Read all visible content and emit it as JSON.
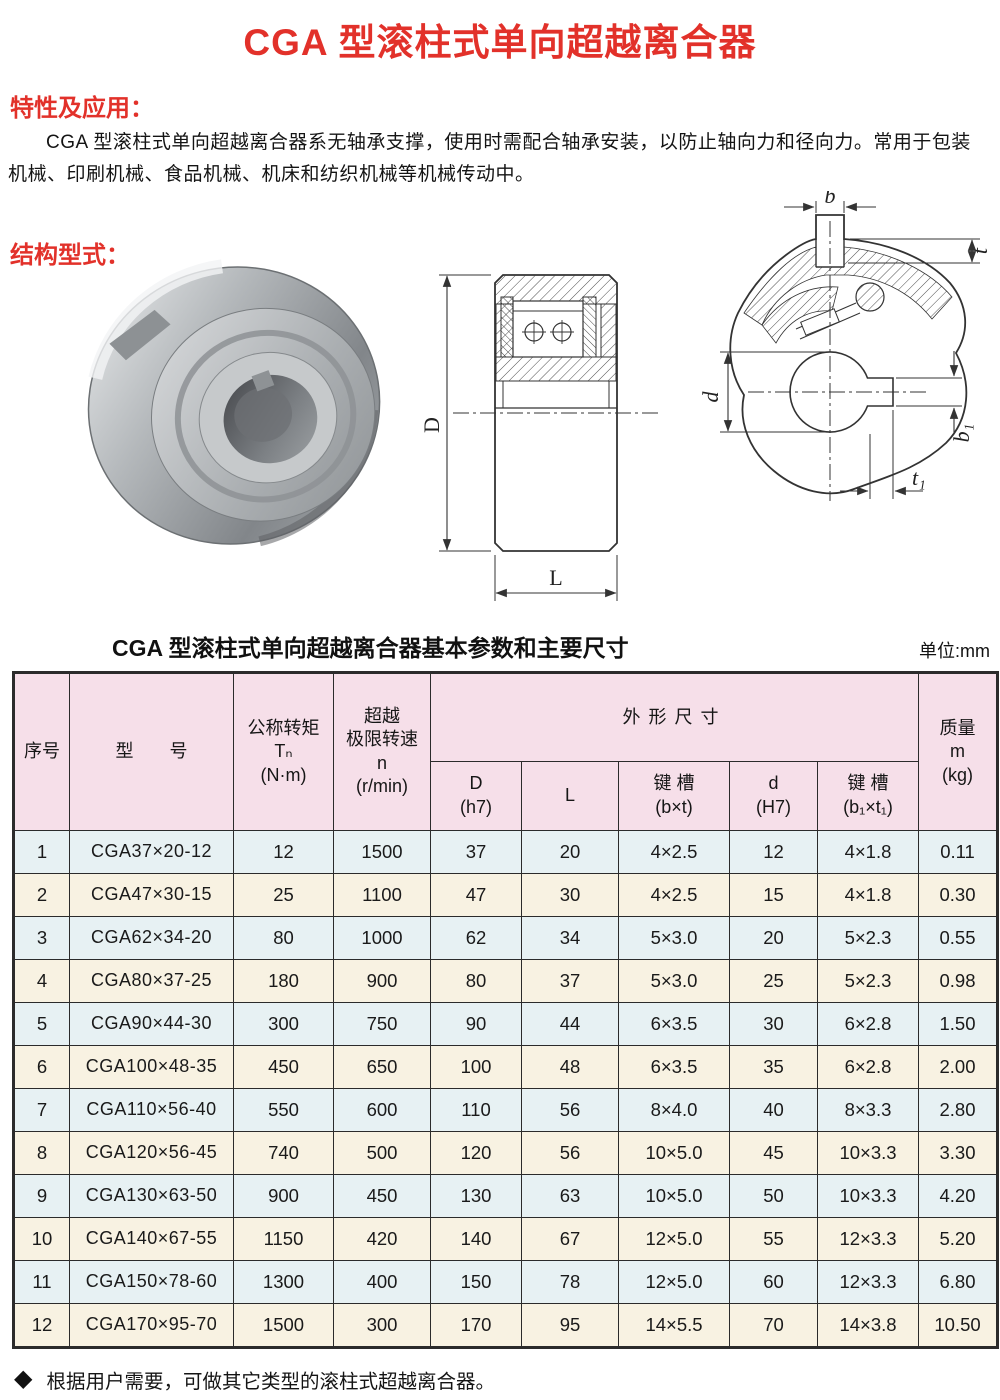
{
  "page_title": "CGA 型滚柱式单向超越离合器",
  "sections": {
    "features": {
      "heading": "特性及应用：",
      "body": "CGA 型滚柱式单向超越离合器系无轴承支撑，使用时需配合轴承安装，以防止轴向力和径向力。常用于包装机械、印刷机械、食品机械、机床和纺织机械等机械传动中。"
    },
    "structure": {
      "heading": "结构型式："
    }
  },
  "drawings": {
    "section_view": {
      "dim_d": "D",
      "dim_l": "L"
    },
    "end_view": {
      "dim_b": "b",
      "dim_t": "t",
      "dim_d": "d",
      "dim_b1": "b₁",
      "dim_t1": "t₁"
    }
  },
  "table": {
    "title": "CGA 型滚柱式单向超越离合器基本参数和主要尺寸",
    "unit_label": "单位:mm",
    "header": {
      "seq": "序号",
      "model": "型　　号",
      "torque": "公称转矩\nTₙ\n(N·m)",
      "speed": "超越\n极限转速\nn\n(r/min)",
      "dims_group": "外形尺寸",
      "d_h7": "D\n(h7)",
      "l": "L",
      "keyway1": "键 槽\n(b×t)",
      "d_H7": "d\n(H7)",
      "keyway2": "键 槽\n(b₁×t₁)",
      "mass": "质量\nm\n(kg)"
    },
    "rows": [
      [
        "1",
        "CGA37×20-12",
        "12",
        "1500",
        "37",
        "20",
        "4×2.5",
        "12",
        "4×1.8",
        "0.11"
      ],
      [
        "2",
        "CGA47×30-15",
        "25",
        "1100",
        "47",
        "30",
        "4×2.5",
        "15",
        "4×1.8",
        "0.30"
      ],
      [
        "3",
        "CGA62×34-20",
        "80",
        "1000",
        "62",
        "34",
        "5×3.0",
        "20",
        "5×2.3",
        "0.55"
      ],
      [
        "4",
        "CGA80×37-25",
        "180",
        "900",
        "80",
        "37",
        "5×3.0",
        "25",
        "5×2.3",
        "0.98"
      ],
      [
        "5",
        "CGA90×44-30",
        "300",
        "750",
        "90",
        "44",
        "6×3.5",
        "30",
        "6×2.8",
        "1.50"
      ],
      [
        "6",
        "CGA100×48-35",
        "450",
        "650",
        "100",
        "48",
        "6×3.5",
        "35",
        "6×2.8",
        "2.00"
      ],
      [
        "7",
        "CGA110×56-40",
        "550",
        "600",
        "110",
        "56",
        "8×4.0",
        "40",
        "8×3.3",
        "2.80"
      ],
      [
        "8",
        "CGA120×56-45",
        "740",
        "500",
        "120",
        "56",
        "10×5.0",
        "45",
        "10×3.3",
        "3.30"
      ],
      [
        "9",
        "CGA130×63-50",
        "900",
        "450",
        "130",
        "63",
        "10×5.0",
        "50",
        "10×3.3",
        "4.20"
      ],
      [
        "10",
        "CGA140×67-55",
        "1150",
        "420",
        "140",
        "67",
        "12×5.0",
        "55",
        "12×3.3",
        "5.20"
      ],
      [
        "11",
        "CGA150×78-60",
        "1300",
        "400",
        "150",
        "78",
        "12×5.0",
        "60",
        "12×3.3",
        "6.80"
      ],
      [
        "12",
        "CGA170×95-70",
        "1500",
        "300",
        "170",
        "95",
        "14×5.5",
        "70",
        "14×3.8",
        "10.50"
      ]
    ]
  },
  "footnote": {
    "bullet": "◆",
    "text": "根据用户需要，可做其它类型的滚柱式超越离合器。"
  },
  "colors": {
    "accent_red": "#e2312a",
    "header_pink": "#f6dfe9",
    "row_blue": "#e7f1f3",
    "row_cream": "#f8f2e2",
    "grid_line": "#2b2b2b"
  }
}
